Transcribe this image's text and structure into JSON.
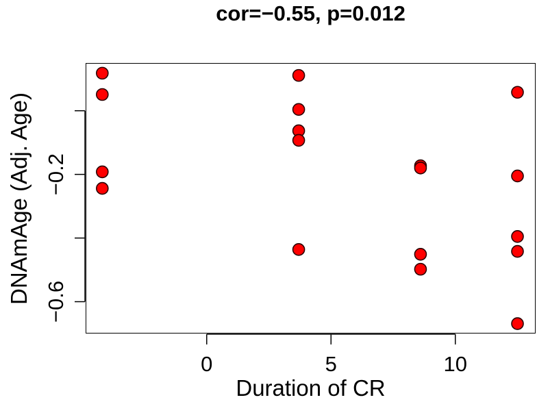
{
  "chart_data": {
    "type": "scatter",
    "title": "cor=−0.55, p=0.012",
    "xlabel": "Duration of CR",
    "ylabel": "DNAmAge (Adj. Age)",
    "xlim": [
      -4.87,
      13.23
    ],
    "ylim": [
      -0.7,
      0.15
    ],
    "x_ticks": [
      0,
      5,
      10
    ],
    "x_tick_labels": [
      "0",
      "5",
      "10"
    ],
    "y_ticks": [
      0.0,
      -0.2,
      -0.4,
      -0.6
    ],
    "y_tick_labels": [
      "",
      "−0.2",
      "",
      "−0.6"
    ],
    "grid": false,
    "legend": null,
    "marker": {
      "shape": "circle",
      "fill": "#ff0000",
      "stroke": "#2a0000"
    },
    "points": [
      {
        "x": -4.2,
        "y": 0.118
      },
      {
        "x": -4.2,
        "y": 0.051
      },
      {
        "x": -4.2,
        "y": -0.192
      },
      {
        "x": -4.2,
        "y": -0.244
      },
      {
        "x": 3.7,
        "y": 0.111
      },
      {
        "x": 3.7,
        "y": 0.004
      },
      {
        "x": 3.7,
        "y": -0.063
      },
      {
        "x": 3.7,
        "y": -0.093
      },
      {
        "x": 3.7,
        "y": -0.436
      },
      {
        "x": 8.6,
        "y": -0.173
      },
      {
        "x": 8.6,
        "y": -0.18
      },
      {
        "x": 8.6,
        "y": -0.451
      },
      {
        "x": 8.6,
        "y": -0.498
      },
      {
        "x": 12.5,
        "y": 0.058
      },
      {
        "x": 12.5,
        "y": -0.205
      },
      {
        "x": 12.5,
        "y": -0.395
      },
      {
        "x": 12.5,
        "y": -0.442
      },
      {
        "x": 12.5,
        "y": -0.669
      }
    ],
    "annotations": {
      "correlation": -0.55,
      "p_value": 0.012
    }
  }
}
